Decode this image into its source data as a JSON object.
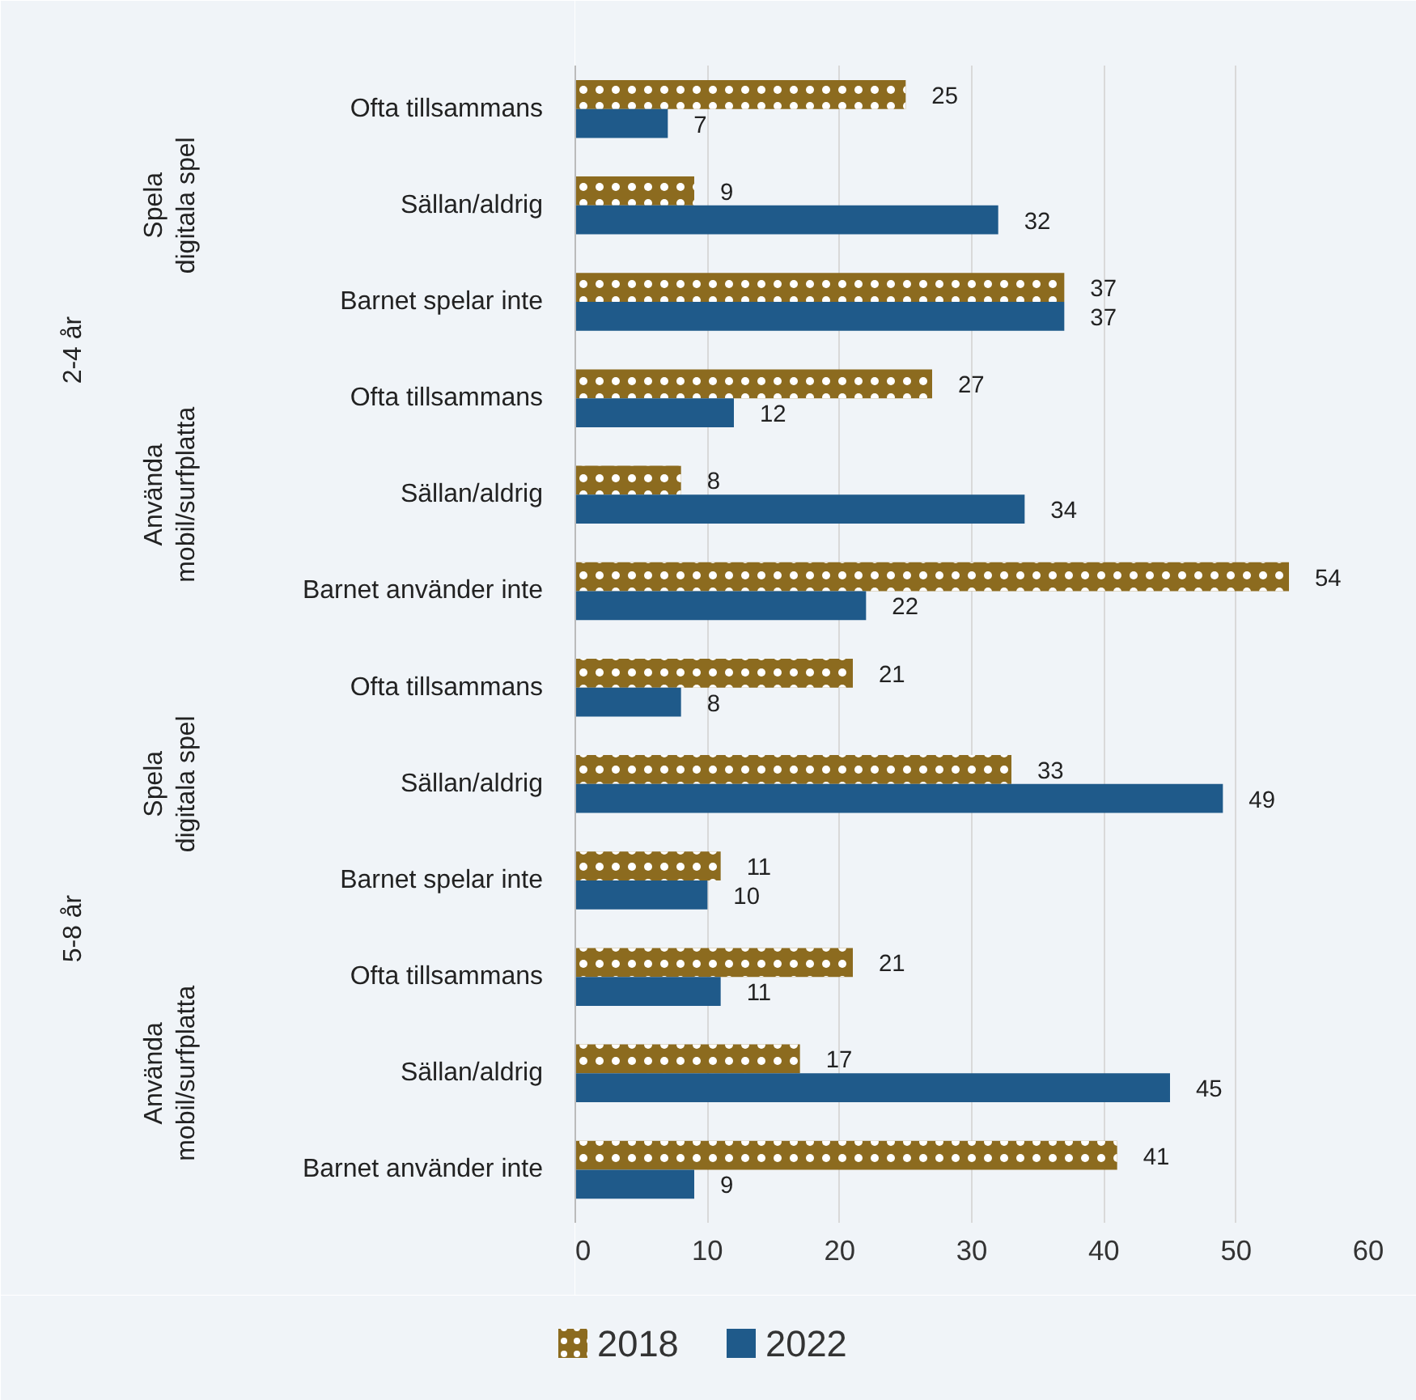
{
  "chart_data": {
    "type": "bar",
    "orientation": "horizontal",
    "categories": [
      "Ofta tillsammans",
      "Sällan/aldrig",
      "Barnet spelar inte",
      "Ofta tillsammans",
      "Sällan/aldrig",
      "Barnet använder inte",
      "Ofta tillsammans",
      "Sällan/aldrig",
      "Barnet spelar inte",
      "Ofta tillsammans",
      "Sällan/aldrig",
      "Barnet använder inte"
    ],
    "series": [
      {
        "name": "2018",
        "color": "#8c6b1f",
        "values": [
          25,
          9,
          37,
          27,
          8,
          54,
          21,
          33,
          11,
          21,
          17,
          41
        ]
      },
      {
        "name": "2022",
        "color": "#1f5a8a",
        "values": [
          7,
          32,
          37,
          12,
          34,
          22,
          8,
          49,
          10,
          11,
          45,
          9
        ]
      }
    ],
    "xlim": [
      0,
      60
    ],
    "xticks": [
      0,
      10,
      20,
      30,
      40,
      50,
      60
    ],
    "grid": "x",
    "legend": "bottom",
    "data_labels": true,
    "annotations": [
      "Spela digitala spel",
      "Använda mobil/surfplatta",
      "Spela digitala spel",
      "Använda mobil/surfplatta",
      "2-4 år",
      "5-8 år"
    ]
  }
}
